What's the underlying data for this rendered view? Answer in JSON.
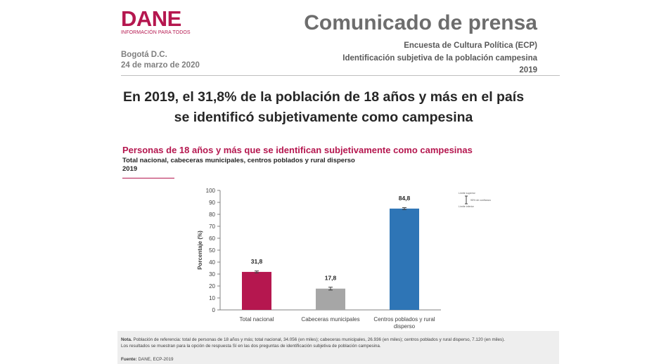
{
  "logo": {
    "name": "DANE",
    "tagline": "INFORMACIÓN PARA TODOS",
    "color": "#b5174f"
  },
  "header": {
    "title": "Comunicado de prensa",
    "survey": "Encuesta de Cultura Política (ECP)",
    "topic": "Identificación subjetiva de la población campesina",
    "year": "2019",
    "place": "Bogotá D.C.",
    "date": "24 de marzo de 2020"
  },
  "headline": {
    "line1": "En 2019, el 31,8% de la población de 18 años y más en el país",
    "line2": "se identificó subjetivamente como campesina"
  },
  "chart_block": {
    "title": "Personas de 18 años y más que se identifican subjetivamente como campesinas",
    "subtitle": "Total nacional, cabeceras municipales, centros poblados y rural disperso",
    "year": "2019"
  },
  "chart_data": {
    "type": "bar",
    "categories": [
      "Total nacional",
      "Cabeceras municipales",
      "Centros poblados y rural disperso"
    ],
    "category_lines": [
      [
        "Total nacional"
      ],
      [
        "Cabeceras municipales"
      ],
      [
        "Centros poblados y rural",
        "disperso"
      ]
    ],
    "values": [
      31.8,
      17.8,
      84.8
    ],
    "value_labels": [
      "31,8",
      "17,8",
      "84,8"
    ],
    "error_bars": [
      [
        31.0,
        32.6
      ],
      [
        16.6,
        19.0
      ],
      [
        84.0,
        85.6
      ]
    ],
    "colors": [
      "#b5174f",
      "#a6a6a6",
      "#2e75b6"
    ],
    "ylabel": "Porcentaje (%)",
    "ylim": [
      0,
      100
    ],
    "yticks": [
      0,
      10,
      20,
      30,
      40,
      50,
      60,
      70,
      80,
      90,
      100
    ],
    "grid": false,
    "legend": {
      "upper": "Límite superior",
      "interval": "95% de confianza",
      "lower": "Límite inferior",
      "placement": "top-right"
    }
  },
  "note": {
    "label": "Nota.",
    "line1": " Población de referencia: total de personas de 18 años y más; total nacional, 34.056 (en miles); cabeceras municipales, 26.936 (en miles); centros poblados y rural disperso, 7.120 (en miles).",
    "line2": "Los resultados se muestran para la opción de respuesta Sí en las dos preguntas de identificación subjetiva de población campesina.",
    "source_label": "Fuente:",
    "source": " DANE, ECP-2019"
  }
}
